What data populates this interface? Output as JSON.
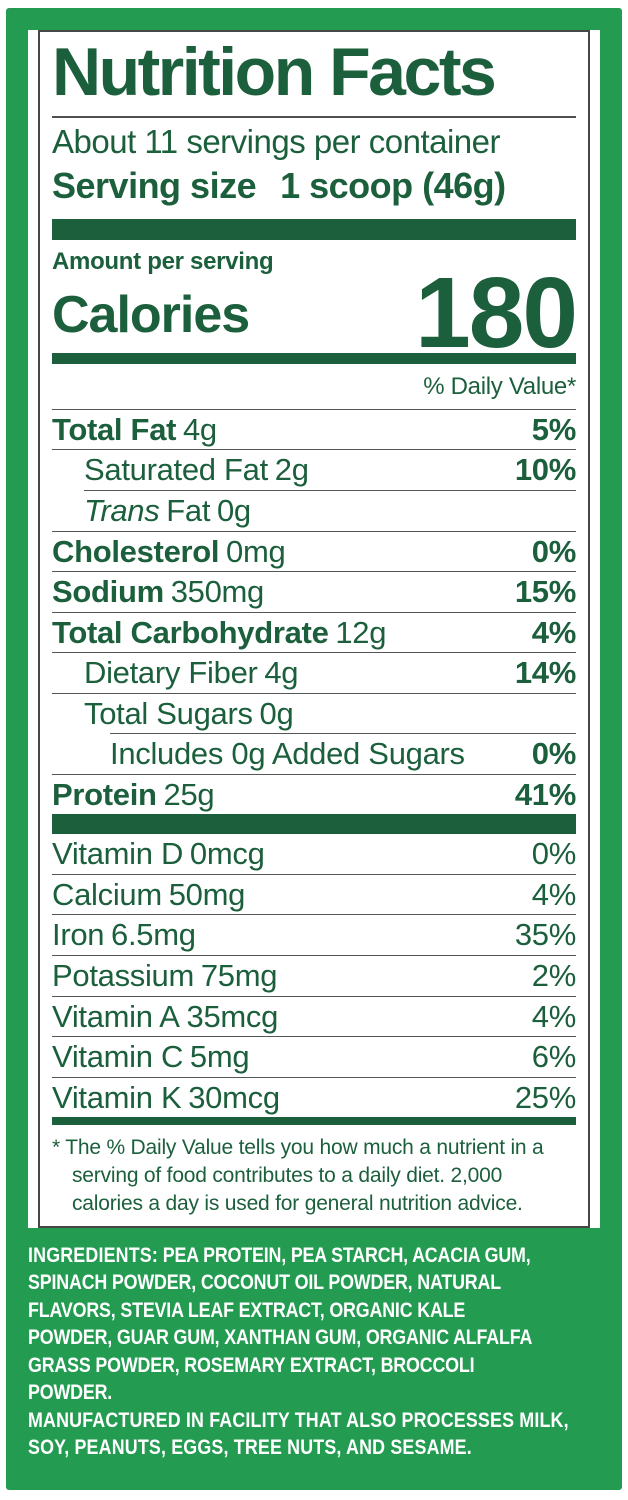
{
  "colors": {
    "brand_green": "#239C52",
    "dark_green": "#1C5F3C",
    "hairline_gray": "#565656",
    "ingredients_text": "#FFFFFF"
  },
  "label": {
    "title": "Nutrition Facts",
    "servings": "About 11 servings per container",
    "serving_size_label": "Serving size",
    "serving_size_value": "1 scoop (46g)",
    "amount_per_serving": "Amount per serving",
    "calories_label": "Calories",
    "calories_value": "180",
    "daily_value_header": "% Daily Value*",
    "footnote": "* The % Daily Value tells you how much a nutrient in a\nserving of food contributes to a daily diet. 2,000\ncalories a day is used for general nutrition advice."
  },
  "nutrients": [
    {
      "name": "Total Fat",
      "amount": "4g",
      "dv": "5%"
    },
    {
      "name": "Saturated Fat",
      "amount": "2g",
      "dv": "10%"
    },
    {
      "name_italic": "Trans",
      "name_rest": "Fat",
      "amount": "0g",
      "dv": ""
    },
    {
      "name": "Cholesterol",
      "amount": "0mg",
      "dv": "0%"
    },
    {
      "name": "Sodium",
      "amount": "350mg",
      "dv": "15%"
    },
    {
      "name": "Total Carbohydrate",
      "amount": "12g",
      "dv": "4%"
    },
    {
      "name": "Dietary Fiber",
      "amount": "4g",
      "dv": "14%"
    },
    {
      "name": "Total Sugars",
      "amount": "0g",
      "dv": ""
    },
    {
      "name": "Includes 0g Added Sugars",
      "amount": "",
      "dv": "0%"
    },
    {
      "name": "Protein",
      "amount": "25g",
      "dv": "41%"
    }
  ],
  "vitamins": [
    {
      "name": "Vitamin D",
      "amount": "0mcg",
      "dv": "0%"
    },
    {
      "name": "Calcium",
      "amount": "50mg",
      "dv": "4%"
    },
    {
      "name": "Iron",
      "amount": "6.5mg",
      "dv": "35%"
    },
    {
      "name": "Potassium",
      "amount": "75mg",
      "dv": "2%"
    },
    {
      "name": "Vitamin A",
      "amount": "35mcg",
      "dv": "4%"
    },
    {
      "name": "Vitamin C",
      "amount": "5mg",
      "dv": "6%"
    },
    {
      "name": "Vitamin K",
      "amount": "30mcg",
      "dv": "25%"
    }
  ],
  "ingredients": {
    "label": "INGREDIENTS:",
    "list": " PEA PROTEIN, PEA STARCH, ACACIA GUM,\nSPINACH POWDER, COCONUT OIL POWDER, NATURAL\nFLAVORS, STEVIA LEAF EXTRACT, ORGANIC KALE\nPOWDER, GUAR GUM, XANTHAN GUM, ORGANIC ALFALFA\nGRASS POWDER, ROSEMARY EXTRACT, BROCCOLI\nPOWDER.",
    "allergen": "MANUFACTURED IN FACILITY THAT ALSO PROCESSES MILK,\nSOY, PEANUTS, EGGS, TREE NUTS, AND SESAME."
  }
}
